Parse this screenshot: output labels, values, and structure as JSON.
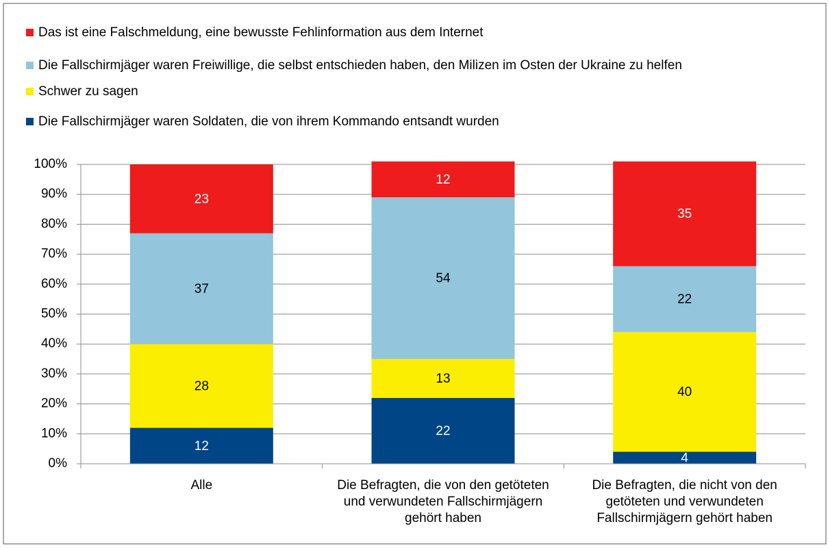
{
  "chart_data": {
    "type": "bar",
    "stacked": true,
    "categories": [
      "Alle",
      "Die Befragten, die von den getöteten und verwundeten Fallschirmjägern gehört haben",
      "Die Befragten, die nicht von den getöteten und verwundeten Fallschirmjägern gehört haben"
    ],
    "series": [
      {
        "name": "Die Fallschirmjäger waren Soldaten, die von ihrem Kommando entsandt wurden",
        "color": "#004687",
        "label_color": "#ffffff",
        "values": [
          12,
          22,
          4
        ]
      },
      {
        "name": "Schwer zu sagen",
        "color": "#fcee00",
        "label_color": "#000000",
        "values": [
          28,
          13,
          40
        ]
      },
      {
        "name": "Die Fallschirmjäger waren Freiwillige, die selbst entschieden haben, den Milizen im Osten der Ukraine zu helfen",
        "color": "#93c5dc",
        "label_color": "#000000",
        "values": [
          37,
          54,
          22
        ]
      },
      {
        "name": "Das ist eine Falschmeldung, eine bewusste Fehlinformation aus dem Internet",
        "color": "#ee1c1c",
        "label_color": "#ffffff",
        "values": [
          23,
          12,
          35
        ]
      }
    ],
    "ylim": [
      0,
      100
    ],
    "yticks": [
      {
        "value": 0,
        "label": "0%"
      },
      {
        "value": 10,
        "label": "10%"
      },
      {
        "value": 20,
        "label": "20%"
      },
      {
        "value": 30,
        "label": "30%"
      },
      {
        "value": 40,
        "label": "40%"
      },
      {
        "value": 50,
        "label": "50%"
      },
      {
        "value": 60,
        "label": "60%"
      },
      {
        "value": 70,
        "label": "70%"
      },
      {
        "value": 80,
        "label": "80%"
      },
      {
        "value": 90,
        "label": "90%"
      },
      {
        "value": 100,
        "label": "100%"
      }
    ],
    "grid": true,
    "legend": "top-left"
  }
}
